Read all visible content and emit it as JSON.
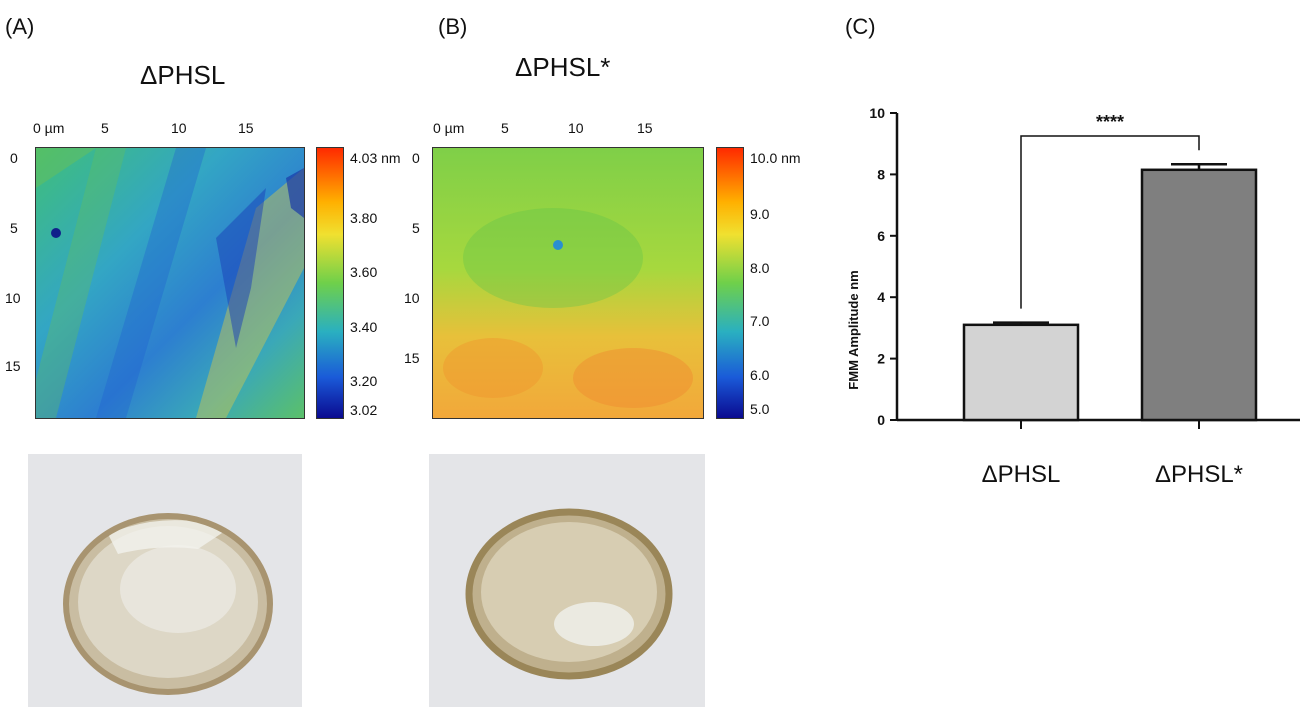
{
  "panel_a": {
    "letter": "(A)",
    "title": "ΔPHSL",
    "x_ticks": [
      "0 µm",
      "5",
      "10",
      "15"
    ],
    "y_ticks": [
      "0",
      "5",
      "10",
      "15"
    ],
    "colorbar_ticks": [
      "4.03 nm",
      "3.80",
      "3.60",
      "3.40",
      "3.20",
      "3.02"
    ]
  },
  "panel_b": {
    "letter": "(B)",
    "title": "ΔPHSL*",
    "x_ticks": [
      "0 µm",
      "5",
      "10",
      "15"
    ],
    "y_ticks": [
      "0",
      "5",
      "10",
      "15"
    ],
    "colorbar_ticks": [
      "10.0 nm",
      "9.0",
      "8.0",
      "7.0",
      "6.0",
      "5.0"
    ]
  },
  "panel_c": {
    "letter": "(C)"
  },
  "chart_data": {
    "type": "bar",
    "categories": [
      "ΔPHSL",
      "ΔPHSL*"
    ],
    "values": [
      3.1,
      8.15
    ],
    "errors": [
      0.07,
      0.18
    ],
    "bar_colors": [
      "#d3d3d3",
      "#7f7f7f"
    ],
    "ylabel": "FMM Amplitude nm",
    "ylim": [
      0,
      10
    ],
    "yticks": [
      "0",
      "2",
      "4",
      "6",
      "8",
      "10"
    ],
    "significance": "****",
    "grid": false
  }
}
